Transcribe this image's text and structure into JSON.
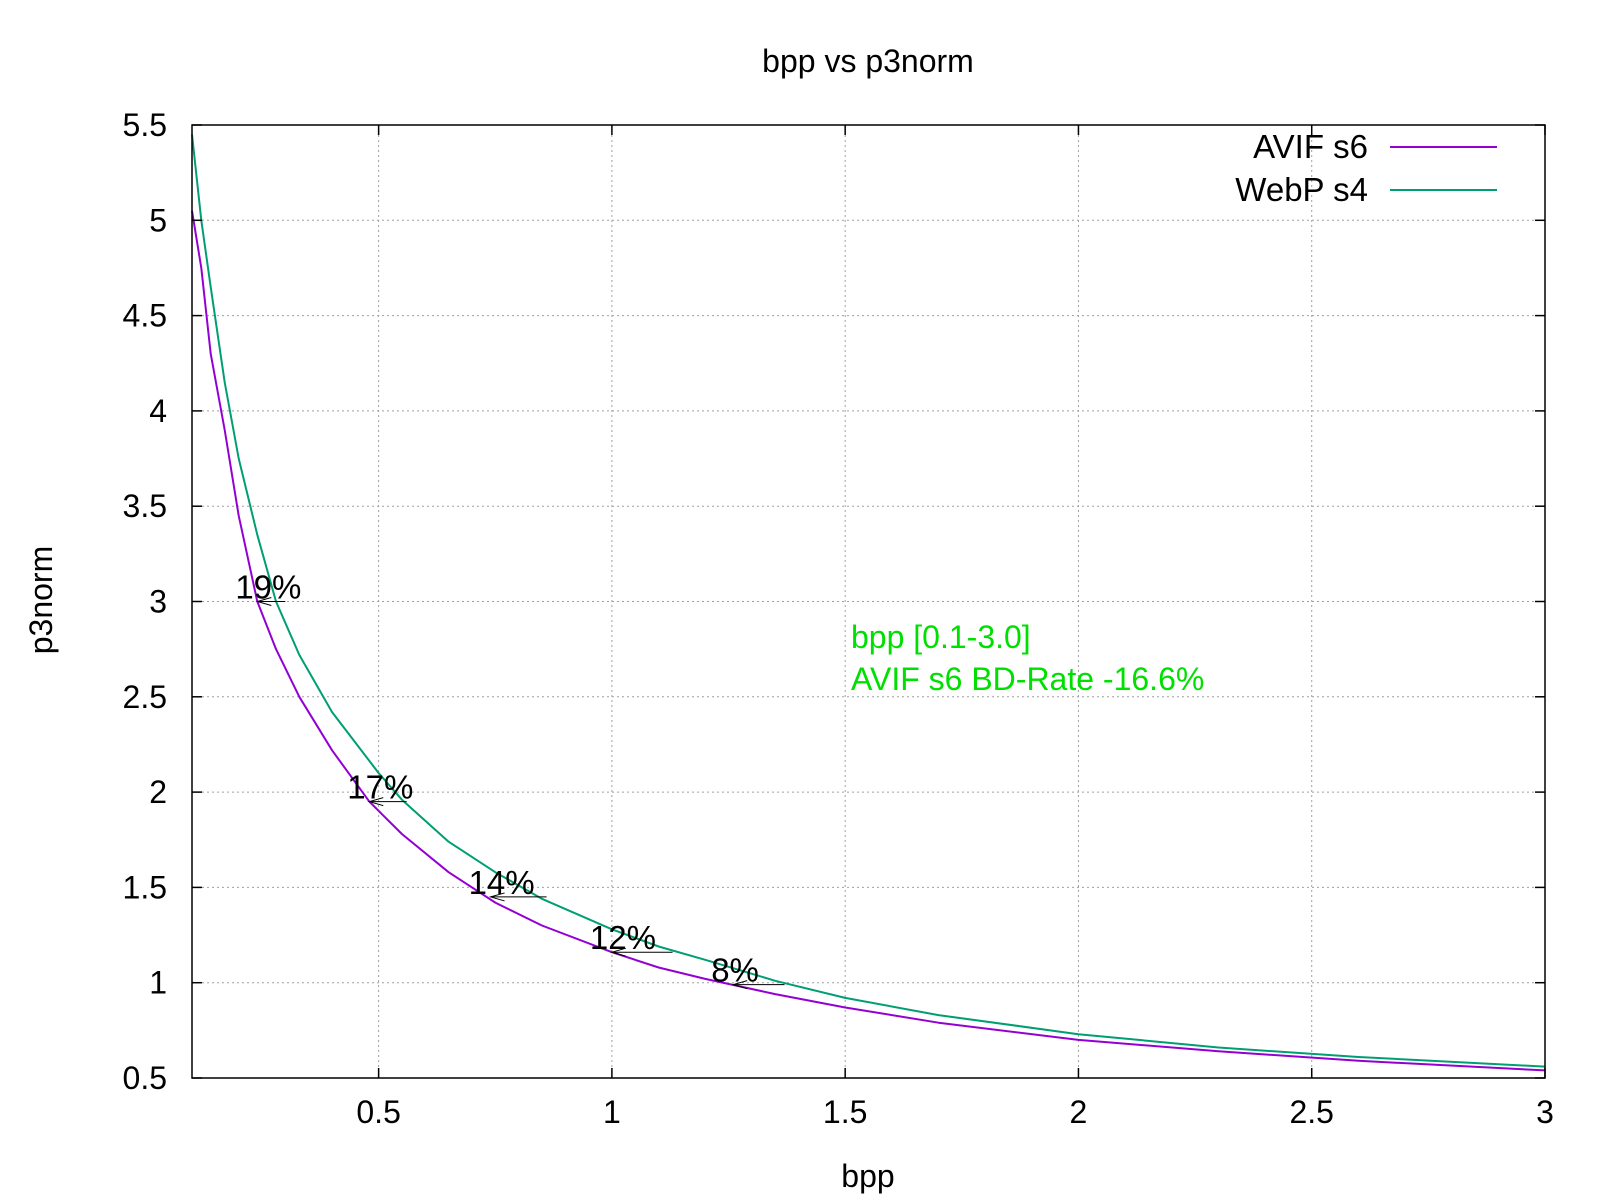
{
  "chart_data": {
    "type": "line",
    "title": "bpp vs p3norm",
    "xlabel": "bpp",
    "ylabel": "p3norm",
    "xlim": [
      0.1,
      3.0
    ],
    "ylim": [
      0.5,
      5.5
    ],
    "xticks": [
      0.5,
      1,
      1.5,
      2,
      2.5,
      3
    ],
    "yticks": [
      0.5,
      1,
      1.5,
      2,
      2.5,
      3,
      3.5,
      4,
      4.5,
      5,
      5.5
    ],
    "grid": true,
    "legend_position": "top-right",
    "series": [
      {
        "name": "AVIF s6",
        "color": "#9400d3",
        "x": [
          0.1,
          0.12,
          0.14,
          0.17,
          0.2,
          0.24,
          0.28,
          0.33,
          0.4,
          0.48,
          0.55,
          0.65,
          0.75,
          0.85,
          1.0,
          1.1,
          1.2,
          1.35,
          1.5,
          1.7,
          2.0,
          2.3,
          2.6,
          3.0
        ],
        "y": [
          5.05,
          4.75,
          4.3,
          3.9,
          3.45,
          3.0,
          2.75,
          2.5,
          2.22,
          1.95,
          1.78,
          1.58,
          1.42,
          1.3,
          1.16,
          1.08,
          1.02,
          0.94,
          0.87,
          0.79,
          0.7,
          0.64,
          0.59,
          0.54
        ]
      },
      {
        "name": "WebP s4",
        "color": "#009e73",
        "x": [
          0.1,
          0.12,
          0.14,
          0.17,
          0.2,
          0.24,
          0.28,
          0.33,
          0.4,
          0.5,
          0.55,
          0.65,
          0.75,
          0.85,
          1.0,
          1.1,
          1.2,
          1.35,
          1.5,
          1.7,
          2.0,
          2.3,
          2.6,
          3.0
        ],
        "y": [
          5.45,
          5.0,
          4.65,
          4.15,
          3.75,
          3.35,
          3.0,
          2.72,
          2.42,
          2.1,
          1.96,
          1.74,
          1.58,
          1.44,
          1.28,
          1.19,
          1.12,
          1.01,
          0.92,
          0.83,
          0.73,
          0.66,
          0.61,
          0.56
        ]
      }
    ],
    "annotations": [
      {
        "label": "19%",
        "x": 0.24,
        "y": 3.0,
        "x_end": 0.3
      },
      {
        "label": "17%",
        "x": 0.48,
        "y": 1.95,
        "x_end": 0.56
      },
      {
        "label": "14%",
        "x": 0.74,
        "y": 1.45,
        "x_end": 0.86
      },
      {
        "label": "12%",
        "x": 1.0,
        "y": 1.16,
        "x_end": 1.13
      },
      {
        "label": "8%",
        "x": 1.26,
        "y": 0.99,
        "x_end": 1.37
      }
    ],
    "note": {
      "color": "#00e000",
      "lines": [
        "bpp [0.1-3.0]",
        "AVIF s6 BD-Rate -16.6%"
      ]
    }
  }
}
